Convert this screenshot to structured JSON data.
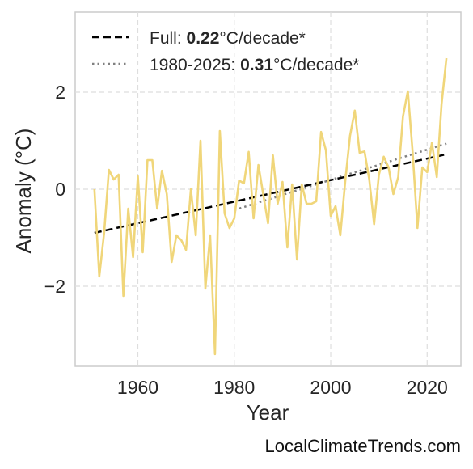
{
  "chart_data": {
    "type": "line",
    "xlabel": "Year",
    "ylabel": "Anomaly (°C)",
    "xlim": [
      1947,
      2027
    ],
    "ylim": [
      -3.65,
      3.65
    ],
    "xticks": [
      1960,
      1980,
      2000,
      2020
    ],
    "yticks": [
      -2,
      0,
      2
    ],
    "ytick_labels": [
      "−2",
      "0",
      "2"
    ],
    "grid": true,
    "legend_position": "top-left",
    "series": [
      {
        "color": "#f0d67a",
        "x": [
          1951,
          1952,
          1953,
          1954,
          1955,
          1956,
          1957,
          1958,
          1959,
          1960,
          1961,
          1962,
          1963,
          1964,
          1965,
          1966,
          1967,
          1968,
          1969,
          1970,
          1971,
          1972,
          1973,
          1974,
          1975,
          1976,
          1977,
          1978,
          1979,
          1980,
          1981,
          1982,
          1983,
          1984,
          1985,
          1986,
          1987,
          1988,
          1989,
          1990,
          1991,
          1992,
          1993,
          1994,
          1995,
          1996,
          1997,
          1998,
          1999,
          2000,
          2001,
          2002,
          2003,
          2004,
          2005,
          2006,
          2007,
          2008,
          2009,
          2010,
          2011,
          2012,
          2013,
          2014,
          2015,
          2016,
          2017,
          2018,
          2019,
          2020,
          2021,
          2022,
          2023,
          2024
        ],
        "y": [
          0.0,
          -1.8,
          -0.9,
          0.4,
          0.2,
          0.3,
          -2.2,
          -0.4,
          -1.4,
          0.27,
          -1.3,
          0.6,
          0.6,
          -0.4,
          0.38,
          -0.1,
          -1.5,
          -0.95,
          -1.05,
          -1.25,
          0.0,
          -0.95,
          1.0,
          -2.05,
          -0.95,
          -3.4,
          1.2,
          -0.5,
          -0.8,
          -0.6,
          0.18,
          0.12,
          0.77,
          -0.6,
          0.5,
          -0.1,
          -0.7,
          0.7,
          -0.3,
          0.15,
          -1.2,
          0.1,
          -1.45,
          0.1,
          -0.3,
          -0.3,
          -0.25,
          1.18,
          0.8,
          -0.55,
          -0.35,
          -0.95,
          0.15,
          1.1,
          1.62,
          0.75,
          0.78,
          0.2,
          -0.72,
          0.3,
          0.67,
          0.45,
          -0.1,
          0.25,
          1.5,
          2.02,
          0.75,
          -0.8,
          0.45,
          0.35,
          0.96,
          0.25,
          1.75,
          2.7
        ]
      }
    ],
    "trend_lines": [
      {
        "label_prefix": "Full: ",
        "label_value": "0.22",
        "label_suffix": "°C/decade*",
        "style": "dashed",
        "color": "#000000",
        "x": [
          1951,
          2024
        ],
        "y": [
          -0.9,
          0.72
        ]
      },
      {
        "label_prefix": "1980-2025: ",
        "label_value": "0.31",
        "label_suffix": "°C/decade*",
        "style": "dotted",
        "color": "#808080",
        "x": [
          1980,
          2024
        ],
        "y": [
          -0.43,
          0.94
        ]
      }
    ]
  },
  "credit": "LocalClimateTrends.com"
}
